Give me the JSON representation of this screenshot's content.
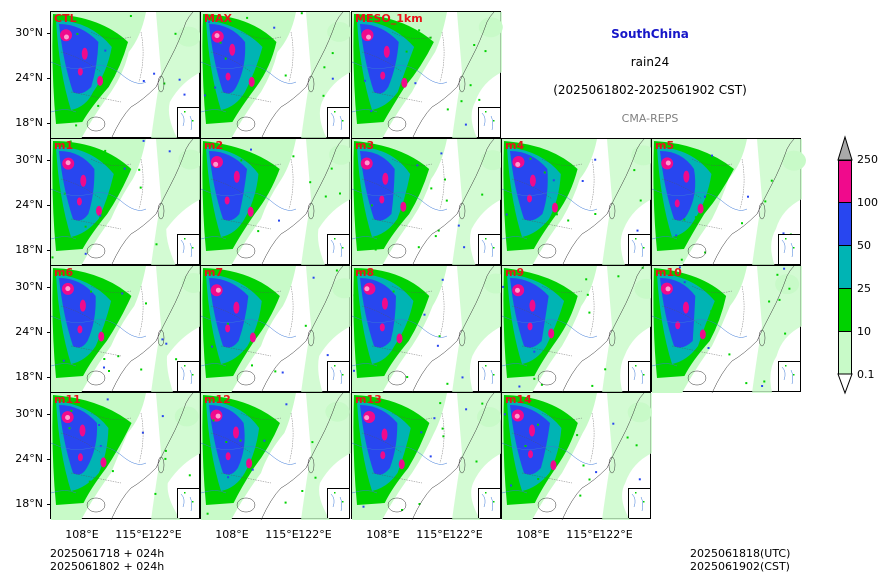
{
  "header": {
    "region": "SouthChina",
    "variable": "rain24",
    "period": "(2025061802-2025061902 CST)",
    "model": "CMA-REPS",
    "region_color": "#1616c8",
    "model_color": "#808080"
  },
  "panels": [
    {
      "label": "CTL"
    },
    {
      "label": "MAX"
    },
    {
      "label": "MESO_1km"
    },
    {
      "label": "m1"
    },
    {
      "label": "m2"
    },
    {
      "label": "m3"
    },
    {
      "label": "m4"
    },
    {
      "label": "m5"
    },
    {
      "label": "m6"
    },
    {
      "label": "m7"
    },
    {
      "label": "m8"
    },
    {
      "label": "m9"
    },
    {
      "label": "m10"
    },
    {
      "label": "m11"
    },
    {
      "label": "m12"
    },
    {
      "label": "m13"
    },
    {
      "label": "m14"
    }
  ],
  "axes": {
    "lat_ticks": [
      "30°N",
      "24°N",
      "18°N"
    ],
    "lon_ticks": [
      "108°E",
      "115°E",
      "122°E"
    ]
  },
  "colorbar": {
    "levels": [
      "0.1",
      "10",
      "25",
      "50",
      "100",
      "250"
    ],
    "colors": [
      "#c8fac8",
      "#00d200",
      "#00b4b4",
      "#2846f0",
      "#f00a8c",
      "#a9a9a9"
    ]
  },
  "footer": {
    "init_utc": "2025061718  +  024h",
    "init_cst": "2025061802  +  024h",
    "valid_utc": "2025061818(UTC)",
    "valid_cst": "2025061902(CST)"
  }
}
